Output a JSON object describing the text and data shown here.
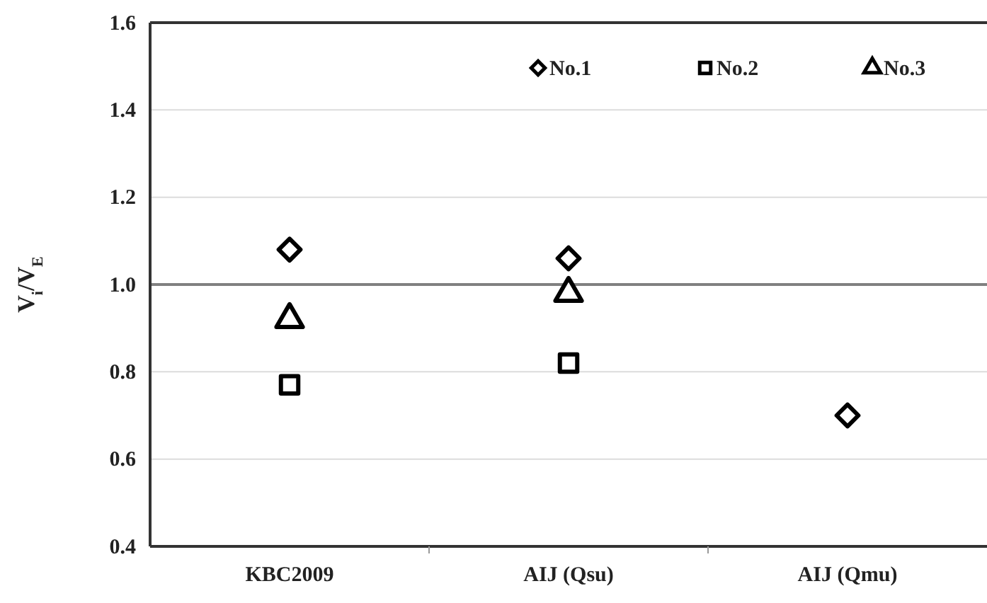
{
  "chart_data": {
    "type": "scatter",
    "ylabel": "V$_{i}$/V$_{E}$",
    "categories": [
      "KBC2009",
      "AIJ (Qsu)",
      "AIJ (Qmu)"
    ],
    "series": [
      {
        "name": "No.1",
        "color": "#000000",
        "marker": "diamond",
        "values": [
          1.08,
          1.06,
          0.7
        ]
      },
      {
        "name": "No.2",
        "color": "#000000",
        "marker": "square",
        "values": [
          0.77,
          0.82,
          null
        ]
      },
      {
        "name": "No.3",
        "color": "#000000",
        "marker": "triangle",
        "values": [
          0.92,
          0.98,
          null
        ]
      }
    ],
    "ylim": [
      0.4,
      1.6
    ],
    "yticks": [
      {
        "value": 0.4,
        "label": "0.4"
      },
      {
        "value": 0.6,
        "label": "0.6"
      },
      {
        "value": 0.8,
        "label": "0.8"
      },
      {
        "value": 1.0,
        "label": "1.0"
      },
      {
        "value": 1.2,
        "label": "1.2"
      },
      {
        "value": 1.4,
        "label": "1.4"
      },
      {
        "value": 1.6,
        "label": "1.6"
      }
    ],
    "grid": "y",
    "legend": "top",
    "ref_lines": [
      {
        "axis": "y",
        "value": 1.0,
        "color": "#808080"
      }
    ]
  }
}
